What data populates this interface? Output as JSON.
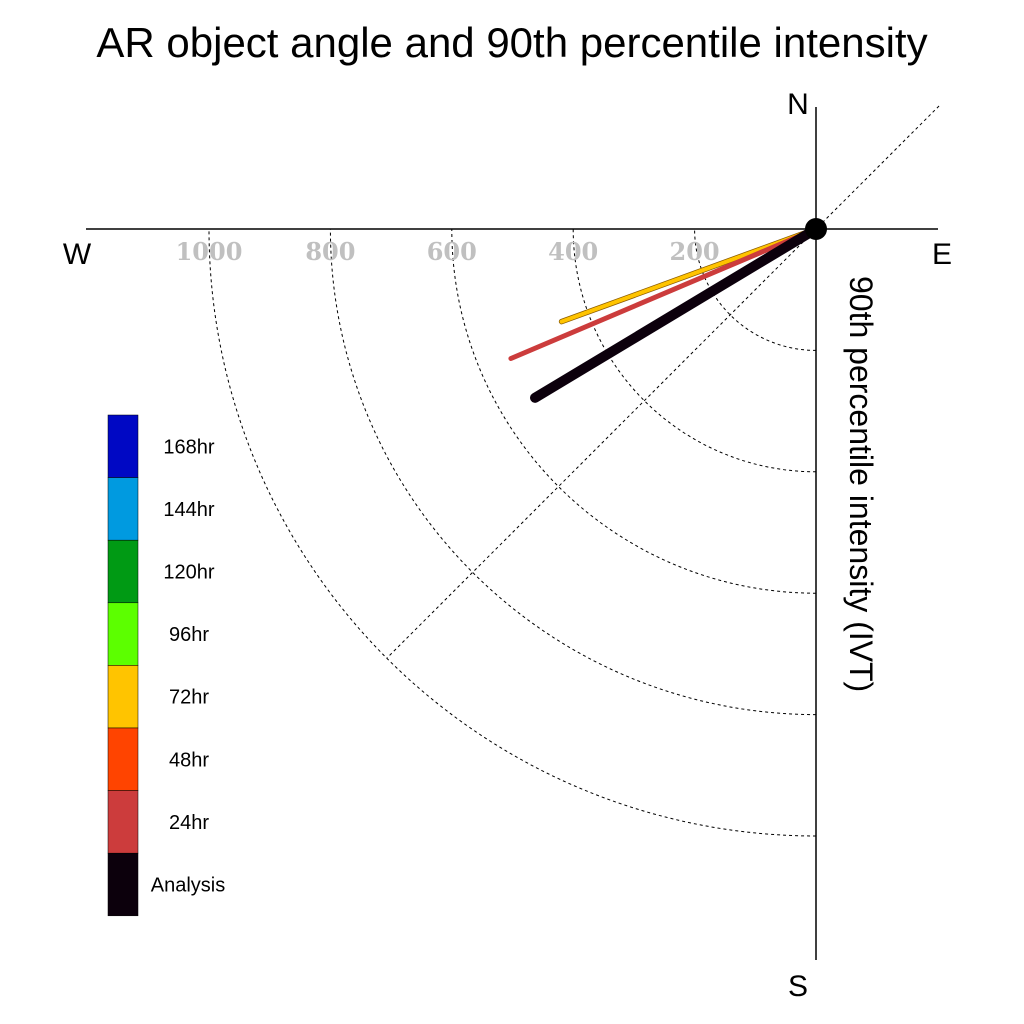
{
  "chart_data": {
    "type": "polar-line",
    "title": "AR object angle and 90th percentile intensity",
    "axis_label": "90th percentile intensity (IVT)",
    "compass": {
      "north": "N",
      "south": "S",
      "east": "E",
      "west": "W"
    },
    "radial_ticks": [
      200,
      400,
      600,
      800,
      1000
    ],
    "radial_tick_labels": [
      "200",
      "400",
      "600",
      "800",
      "1000"
    ],
    "radial_range": [
      0,
      1200
    ],
    "quadrant": "south-west",
    "grid": true,
    "legend": {
      "placement": "left",
      "entries": [
        {
          "label": "168hr",
          "color": "#0008c4"
        },
        {
          "label": "144hr",
          "color": "#009ae0"
        },
        {
          "label": "120hr",
          "color": "#009a14"
        },
        {
          "label": "96hr",
          "color": "#5cff00"
        },
        {
          "label": "72hr",
          "color": "#ffc400"
        },
        {
          "label": "48hr",
          "color": "#ff4400"
        },
        {
          "label": "24hr",
          "color": "#cc3c3c"
        },
        {
          "label": "Analysis",
          "color": "#0c000c"
        }
      ]
    },
    "series": [
      {
        "name": "72hr",
        "color": "#ffc400",
        "angle_deg": 250,
        "intensity": 446
      },
      {
        "name": "24hr",
        "color": "#cc3c3c",
        "angle_deg": 247,
        "intensity": 546
      },
      {
        "name": "Analysis",
        "color": "#0c000c",
        "angle_deg": 239,
        "intensity": 540
      }
    ]
  }
}
